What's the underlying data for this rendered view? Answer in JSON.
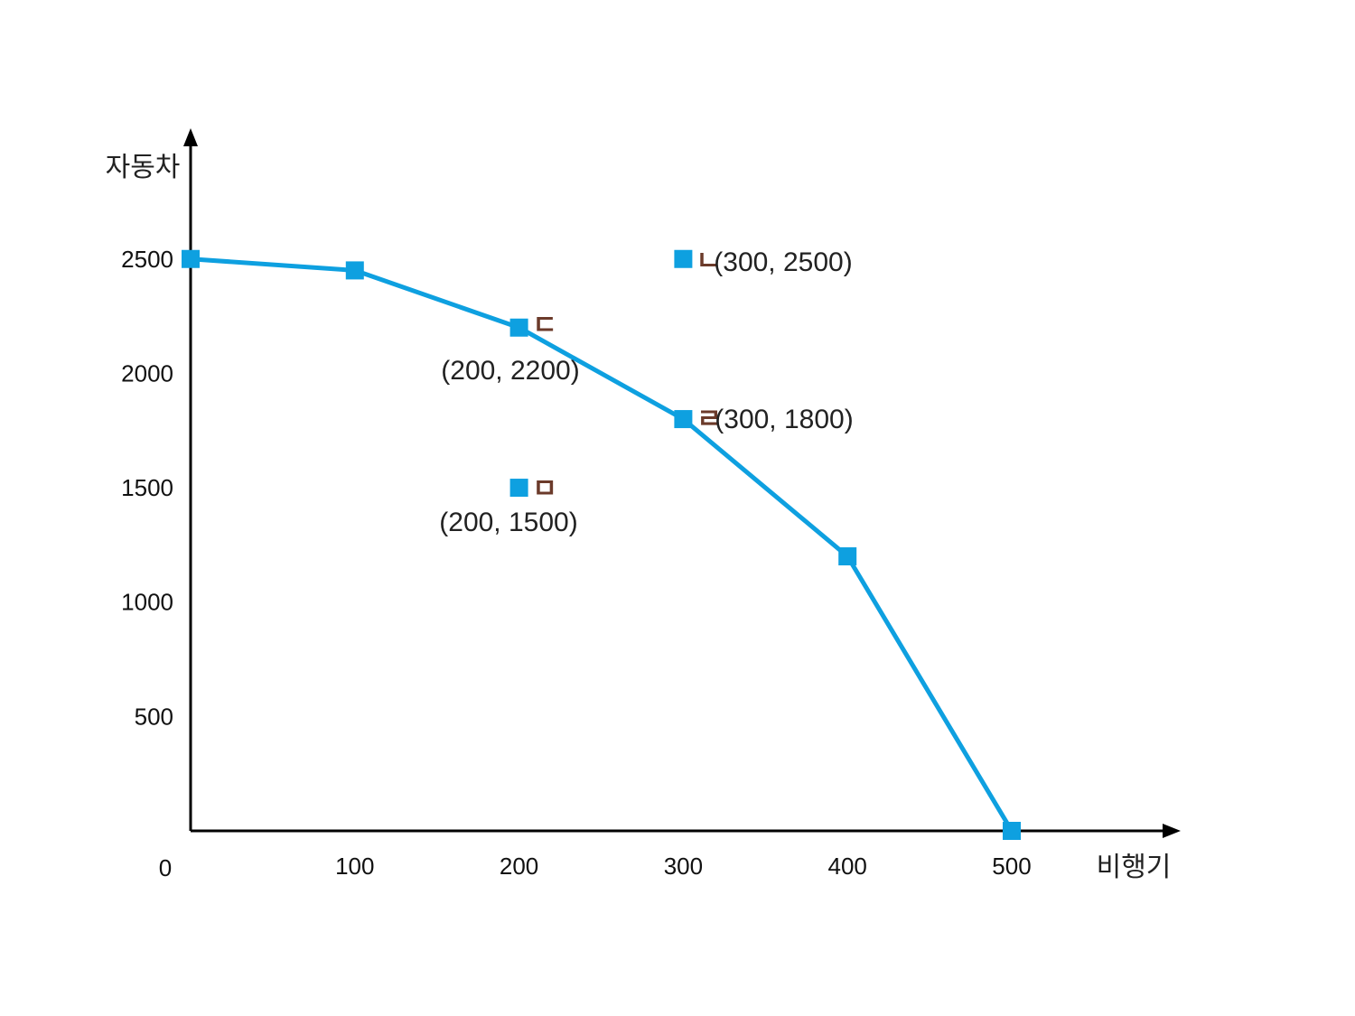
{
  "chart_data": {
    "type": "line",
    "xlabel": "비행기",
    "ylabel": "자동차",
    "origin_label": "0",
    "xlim": [
      0,
      600
    ],
    "ylim": [
      0,
      3000
    ],
    "x_ticks": [
      100,
      200,
      300,
      400,
      500
    ],
    "y_ticks": [
      500,
      1000,
      1500,
      2000,
      2500
    ],
    "grid": false,
    "series": [
      {
        "x": [
          0,
          100,
          200,
          300,
          400,
          500
        ],
        "y": [
          2500,
          2450,
          2200,
          1800,
          1200,
          0
        ]
      }
    ],
    "annotated_points": [
      {
        "letter": "ㄷ",
        "label": "(200, 2200)",
        "x": 200,
        "y": 2200,
        "on_curve": true
      },
      {
        "letter": "ㄹ",
        "label": "(300, 1800)",
        "x": 300,
        "y": 1800,
        "on_curve": true
      },
      {
        "letter": "ㄴ",
        "label": "(300, 2500)",
        "x": 300,
        "y": 2500,
        "on_curve": false
      },
      {
        "letter": "ㅁ",
        "label": "(200, 1500)",
        "x": 200,
        "y": 1500,
        "on_curve": false
      }
    ],
    "colors": {
      "line": "#0ea0e0",
      "marker": "#0ea0e0",
      "letter": "#6b3a2a",
      "axis": "#000000"
    }
  }
}
